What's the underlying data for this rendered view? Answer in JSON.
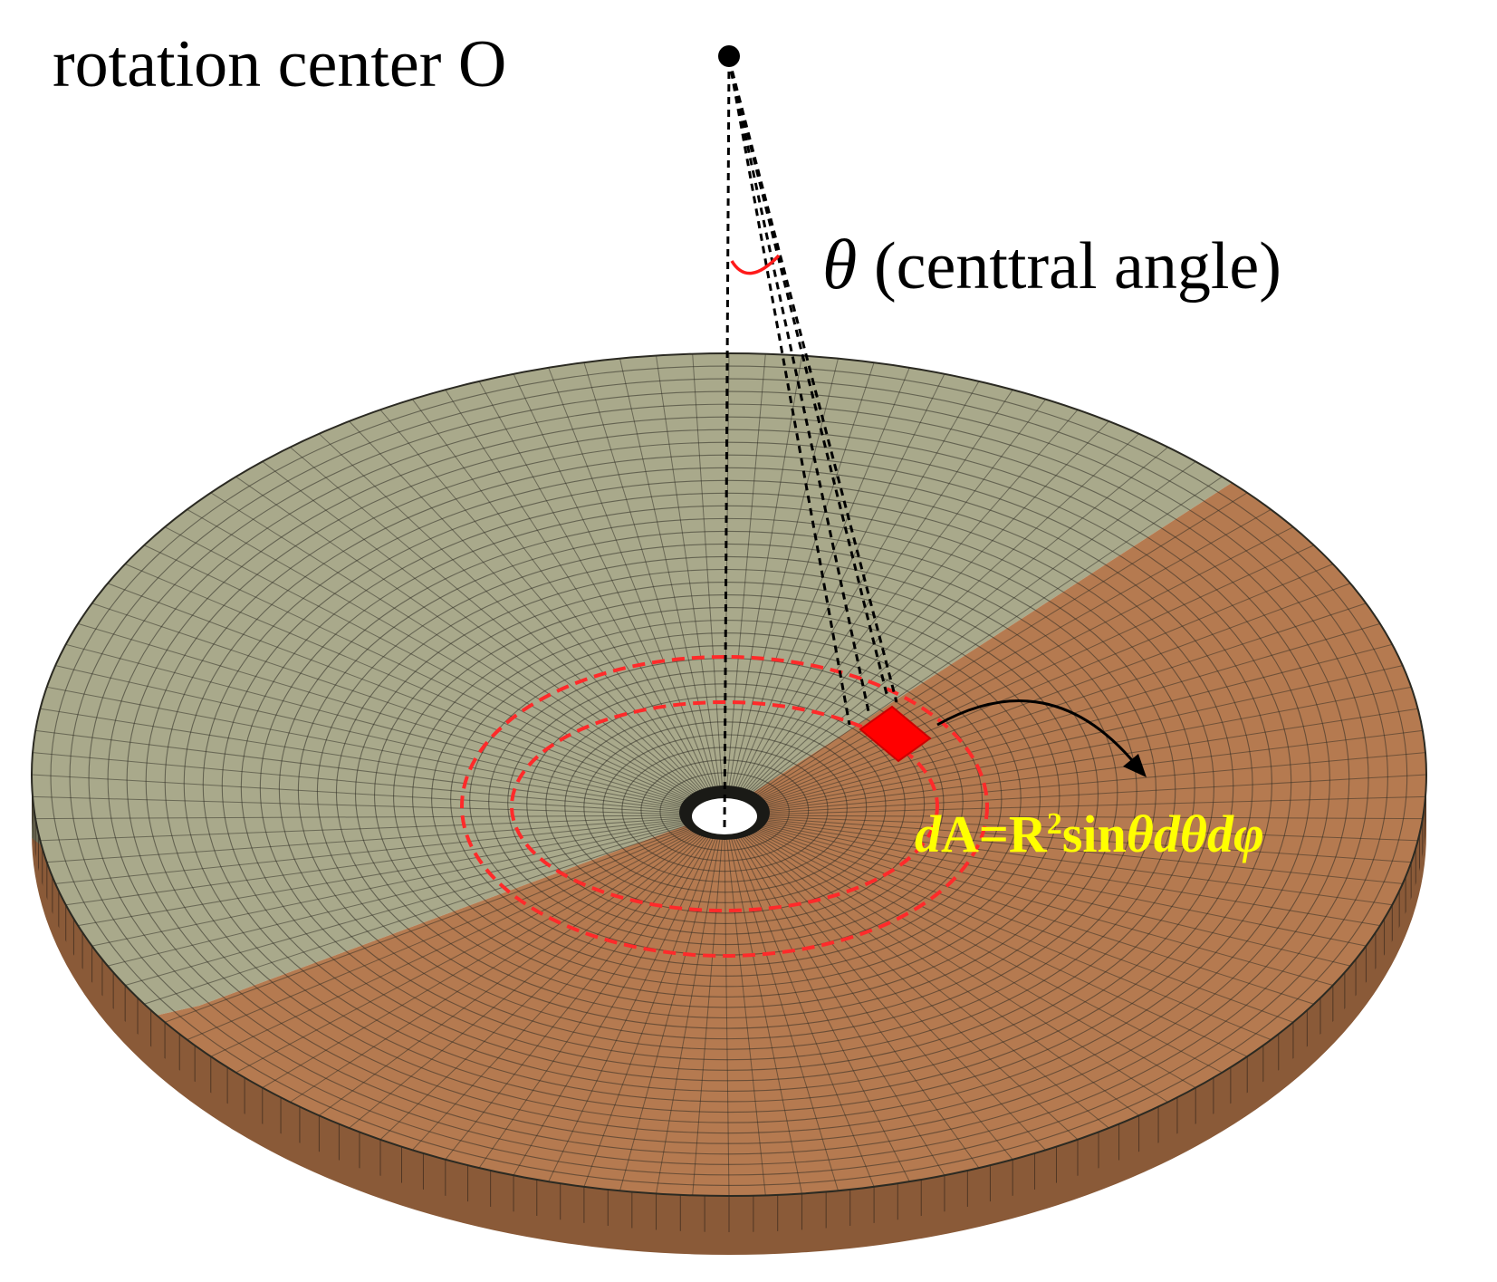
{
  "labels": {
    "rotation_center": "rotation center O",
    "theta_symbol": "θ",
    "theta_description": "(centtral angle)",
    "area_formula": {
      "d1": "d",
      "A_eq_R": "A=R",
      "exponent": "2",
      "sin": "sin",
      "theta": "θ",
      "d2": "d",
      "theta2": "θ",
      "d3": "d",
      "phi": "φ"
    }
  },
  "colors": {
    "light_sector": "#a9a98b",
    "dark_sector": "#b57a50",
    "mesh_line": "#2b2a22",
    "highlight": "#ff1a1a",
    "formula": "#ffff00",
    "dashed_line": "#000000"
  }
}
